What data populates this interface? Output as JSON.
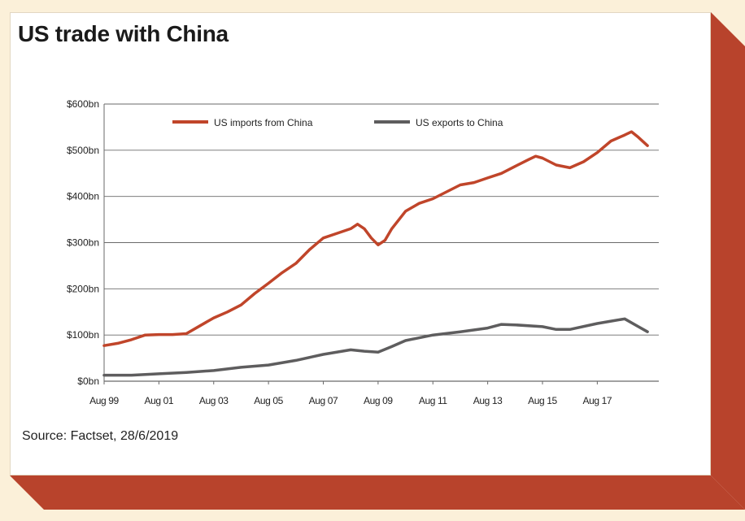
{
  "title": "US trade with China",
  "source": "Source: Factset, 28/6/2019",
  "colors": {
    "background": "#fbf0d9",
    "card": "#ffffff",
    "shadow": "#b8432c",
    "imports": "#c0452a",
    "exports": "#5e5d5e",
    "grid": "#6a6a6a"
  },
  "chart_data": {
    "type": "line",
    "title": "US trade with China",
    "xlabel": "",
    "ylabel": "",
    "ylim": [
      0,
      600
    ],
    "y_ticks": [
      {
        "value": 0,
        "label": "$0bn"
      },
      {
        "value": 100,
        "label": "$100bn"
      },
      {
        "value": 200,
        "label": "$200bn"
      },
      {
        "value": 300,
        "label": "$300bn"
      },
      {
        "value": 400,
        "label": "$400bn"
      },
      {
        "value": 500,
        "label": "$500bn"
      },
      {
        "value": 600,
        "label": "$600bn"
      }
    ],
    "x_ticks": [
      "Aug 99",
      "Aug 01",
      "Aug 03",
      "Aug 05",
      "Aug 07",
      "Aug 09",
      "Aug 11",
      "Aug 13",
      "Aug 15",
      "Aug 17"
    ],
    "xlim": [
      "1999-08",
      "2019-06"
    ],
    "grid": "horizontal",
    "legend": "top",
    "series": [
      {
        "name": "US imports from China",
        "color": "#c0452a",
        "points": [
          [
            "1999-08",
            77
          ],
          [
            "2000-02",
            82
          ],
          [
            "2000-08",
            90
          ],
          [
            "2001-02",
            100
          ],
          [
            "2001-08",
            101
          ],
          [
            "2002-02",
            101
          ],
          [
            "2002-08",
            103
          ],
          [
            "2003-02",
            120
          ],
          [
            "2003-08",
            137
          ],
          [
            "2004-02",
            150
          ],
          [
            "2004-08",
            165
          ],
          [
            "2005-02",
            190
          ],
          [
            "2005-08",
            212
          ],
          [
            "2006-02",
            235
          ],
          [
            "2006-08",
            255
          ],
          [
            "2007-02",
            285
          ],
          [
            "2007-08",
            310
          ],
          [
            "2008-02",
            320
          ],
          [
            "2008-08",
            330
          ],
          [
            "2008-11",
            340
          ],
          [
            "2009-02",
            330
          ],
          [
            "2009-05",
            310
          ],
          [
            "2009-08",
            295
          ],
          [
            "2009-11",
            305
          ],
          [
            "2010-02",
            330
          ],
          [
            "2010-08",
            368
          ],
          [
            "2011-02",
            385
          ],
          [
            "2011-08",
            395
          ],
          [
            "2012-02",
            410
          ],
          [
            "2012-08",
            425
          ],
          [
            "2013-02",
            430
          ],
          [
            "2013-08",
            440
          ],
          [
            "2014-02",
            450
          ],
          [
            "2014-08",
            465
          ],
          [
            "2015-02",
            480
          ],
          [
            "2015-05",
            487
          ],
          [
            "2015-08",
            483
          ],
          [
            "2016-02",
            468
          ],
          [
            "2016-08",
            462
          ],
          [
            "2017-02",
            475
          ],
          [
            "2017-08",
            495
          ],
          [
            "2018-02",
            520
          ],
          [
            "2018-08",
            533
          ],
          [
            "2018-11",
            540
          ],
          [
            "2019-02",
            528
          ],
          [
            "2019-06",
            510
          ]
        ]
      },
      {
        "name": "US exports to China",
        "color": "#5e5d5e",
        "points": [
          [
            "1999-08",
            13
          ],
          [
            "2000-08",
            13
          ],
          [
            "2001-08",
            16
          ],
          [
            "2002-08",
            19
          ],
          [
            "2003-08",
            23
          ],
          [
            "2004-08",
            30
          ],
          [
            "2005-08",
            35
          ],
          [
            "2006-08",
            45
          ],
          [
            "2007-08",
            58
          ],
          [
            "2008-08",
            68
          ],
          [
            "2009-02",
            65
          ],
          [
            "2009-08",
            63
          ],
          [
            "2010-02",
            75
          ],
          [
            "2010-08",
            88
          ],
          [
            "2011-08",
            100
          ],
          [
            "2012-08",
            107
          ],
          [
            "2013-08",
            115
          ],
          [
            "2014-02",
            123
          ],
          [
            "2014-08",
            122
          ],
          [
            "2015-08",
            118
          ],
          [
            "2016-02",
            112
          ],
          [
            "2016-08",
            112
          ],
          [
            "2017-08",
            125
          ],
          [
            "2018-02",
            130
          ],
          [
            "2018-08",
            135
          ],
          [
            "2019-02",
            118
          ],
          [
            "2019-06",
            107
          ]
        ]
      }
    ]
  }
}
